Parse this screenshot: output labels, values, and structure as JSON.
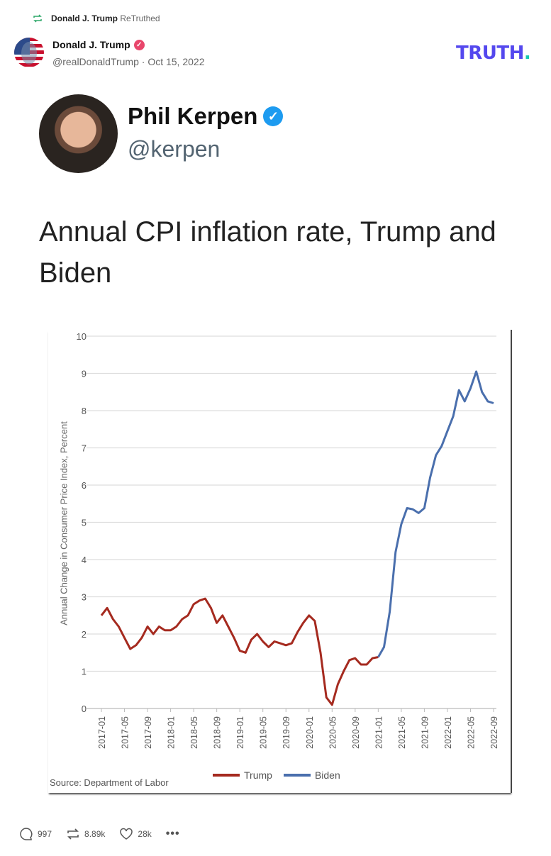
{
  "retruth": {
    "user": "Donald J. Trump",
    "label": "ReTruthed",
    "icon": "retruth-icon"
  },
  "post": {
    "author": "Donald J. Trump",
    "handle": "@realDonaldTrump",
    "separator": "·",
    "date": "Oct 15, 2022",
    "verified_color": "#e8466b"
  },
  "logo": {
    "text": "TRUTH",
    "dot": ".",
    "color": "#5448ee",
    "dot_color": "#17c9b0"
  },
  "embedded": {
    "name": "Phil Kerpen",
    "handle": "@kerpen",
    "text": "Annual CPI inflation rate, Trump and Biden"
  },
  "actions": {
    "replies": "997",
    "retruths": "8.89k",
    "likes": "28k"
  },
  "chart_data": {
    "type": "line",
    "ylabel": "Annual Change in Consumer Price Index, Percent",
    "ylim": [
      0,
      10
    ],
    "yticks": [
      "0",
      "1",
      "2",
      "3",
      "4",
      "5",
      "6",
      "7",
      "8",
      "9",
      "10"
    ],
    "xticks": [
      "2017-01",
      "2017-05",
      "2017-09",
      "2018-01",
      "2018-05",
      "2018-09",
      "2019-01",
      "2019-05",
      "2019-09",
      "2020-01",
      "2020-05",
      "2020-09",
      "2021-01",
      "2021-05",
      "2021-09",
      "2022-01",
      "2022-05",
      "2022-09"
    ],
    "x_start": "2017-01",
    "grid": true,
    "legend_placement": "bottom",
    "source": "Source: Department of Labor",
    "series": [
      {
        "name": "Trump",
        "color": "#a52a1f",
        "start": "2017-01",
        "values": [
          2.5,
          2.7,
          2.4,
          2.2,
          1.9,
          1.6,
          1.7,
          1.9,
          2.2,
          2.0,
          2.2,
          2.1,
          2.1,
          2.2,
          2.4,
          2.5,
          2.8,
          2.9,
          2.95,
          2.7,
          2.3,
          2.5,
          2.2,
          1.9,
          1.55,
          1.5,
          1.85,
          2.0,
          1.8,
          1.65,
          1.8,
          1.75,
          1.7,
          1.75,
          2.05,
          2.3,
          2.5,
          2.35,
          1.5,
          0.3,
          0.1,
          0.65,
          1.0,
          1.3,
          1.35,
          1.18,
          1.18,
          1.35,
          1.38
        ]
      },
      {
        "name": "Biden",
        "color": "#4a6fad",
        "start": "2021-01",
        "values": [
          1.38,
          1.65,
          2.6,
          4.2,
          4.95,
          5.38,
          5.35,
          5.25,
          5.38,
          6.2,
          6.8,
          7.05,
          7.45,
          7.85,
          8.55,
          8.25,
          8.6,
          9.05,
          8.5,
          8.25,
          8.2
        ]
      }
    ]
  }
}
